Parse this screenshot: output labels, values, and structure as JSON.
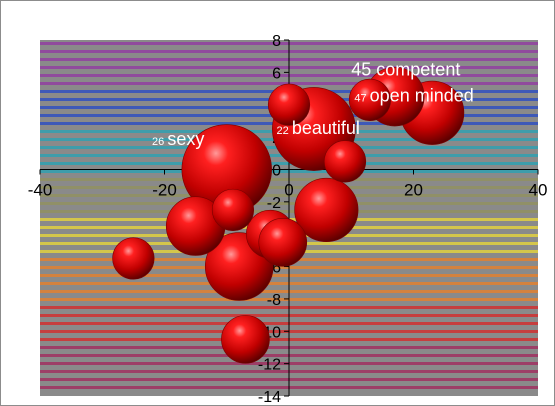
{
  "chart_data": {
    "type": "bubble",
    "title": "",
    "xlabel": "",
    "ylabel": "",
    "xlim": [
      -40,
      40
    ],
    "ylim": [
      -14,
      8
    ],
    "x_ticks": [
      -40,
      -20,
      0,
      20,
      40
    ],
    "y_ticks": [
      8,
      6,
      4,
      2,
      0,
      -2,
      -4,
      -6,
      -8,
      -10,
      -12,
      -14
    ],
    "grid": "horizontal rainbow bands",
    "legend": "none",
    "bubble_color": "#c00000",
    "band_colors": [
      "#9040a0",
      "#3050c0",
      "#30a0b0",
      "#909060",
      "#e0d040",
      "#e08030",
      "#d03030",
      "#a03060"
    ],
    "points": [
      {
        "x": -25,
        "y": -5.5,
        "size": 3
      },
      {
        "x": -15,
        "y": -3.5,
        "size": 6
      },
      {
        "x": -10,
        "y": 0,
        "size": 14
      },
      {
        "x": -9,
        "y": -2.5,
        "size": 3
      },
      {
        "x": -8,
        "y": -6,
        "size": 8
      },
      {
        "x": -7,
        "y": -10.5,
        "size": 4
      },
      {
        "x": -3,
        "y": -4,
        "size": 4
      },
      {
        "x": -1,
        "y": -4.5,
        "size": 4
      },
      {
        "x": 0,
        "y": 4,
        "size": 3
      },
      {
        "x": 4,
        "y": 2.5,
        "size": 12
      },
      {
        "x": 6,
        "y": -2.5,
        "size": 7
      },
      {
        "x": 9,
        "y": 0.5,
        "size": 3
      },
      {
        "x": 13,
        "y": 4.3,
        "size": 3
      },
      {
        "x": 17,
        "y": 4.5,
        "size": 6
      },
      {
        "x": 23,
        "y": 3.5,
        "size": 7
      }
    ],
    "annotations": [
      {
        "id": "competent",
        "number": "45",
        "text": "competent",
        "x": 10,
        "y": 5.8
      },
      {
        "id": "open-minded",
        "number": "47",
        "text": "open minded",
        "x": 10.5,
        "y": 4.2
      },
      {
        "id": "beautiful",
        "number": "22",
        "text": "beautiful",
        "x": -2,
        "y": 2.2
      },
      {
        "id": "sexy",
        "number": "26",
        "text": "sexy",
        "x": -22,
        "y": 1.5
      }
    ]
  }
}
